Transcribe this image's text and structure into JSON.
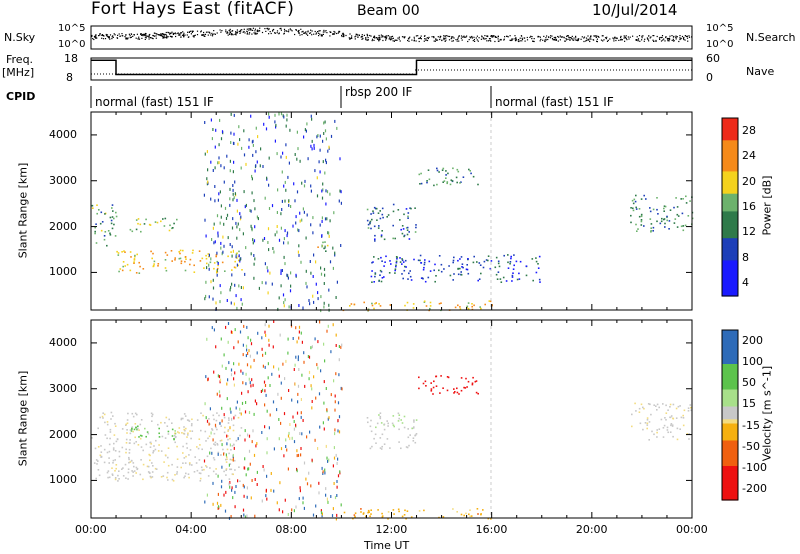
{
  "header": {
    "station": "Fort Hays East (fitACF)",
    "beam": "Beam 00",
    "date": "10/Jul/2014"
  },
  "strip_labels": {
    "nsky": "N.Sky",
    "nsky_top": "10^5",
    "nsky_bottom": "10^0",
    "nsearch": "N.Search",
    "nsearch_top": "10^5",
    "nsearch_bottom": "10^0",
    "freq": "Freq.",
    "freq_unit": "[MHz]",
    "freq_top": "18",
    "freq_bottom": "8",
    "nave": "Nave",
    "nave_top": "60",
    "nave_bottom": "0",
    "cpid": "CPID"
  },
  "cpid_segments": [
    {
      "label": "normal (fast) 151 IF",
      "start_hour": 0
    },
    {
      "label": "rbsp 200 IF",
      "start_hour": 10
    },
    {
      "label": "normal (fast) 151 IF",
      "start_hour": 16
    }
  ],
  "x_axis": {
    "title": "Time UT",
    "ticks": [
      "00:00",
      "04:00",
      "08:00",
      "12:00",
      "16:00",
      "20:00",
      "00:00"
    ]
  },
  "panels": {
    "power": {
      "ylabel": "Slant Range [km]",
      "yticks": [
        "4000",
        "3000",
        "2000",
        "1000"
      ],
      "colorbar_label": "Power [dB]",
      "colorbar_ticks": [
        "28",
        "24",
        "20",
        "16",
        "12",
        "8",
        "4"
      ]
    },
    "velocity": {
      "ylabel": "Slant Range [km]",
      "yticks": [
        "4000",
        "3000",
        "2000",
        "1000"
      ],
      "colorbar_label": "Velocity [m s^-1]",
      "colorbar_ticks": [
        "200",
        "100",
        "50",
        "15",
        "-15",
        "-50",
        "-100",
        "-200"
      ]
    }
  },
  "chart_data": [
    {
      "type": "line",
      "name": "N.Sky / N.Search",
      "y_scale": "log",
      "ylim": [
        1,
        100000
      ]
    },
    {
      "type": "line",
      "name": "Frequency / Nave",
      "xlim": [
        0,
        24
      ],
      "ylim": [
        8,
        18
      ],
      "series": [
        {
          "name": "Freq.",
          "x": [
            0,
            1,
            1,
            13,
            13,
            24
          ],
          "values": [
            17,
            17,
            10.5,
            10.5,
            17,
            17
          ]
        }
      ]
    },
    {
      "type": "heatmap",
      "name": "Power",
      "xlim": [
        0,
        24
      ],
      "ylim": [
        180,
        4500
      ],
      "colorbar": {
        "min": 0,
        "max": 30,
        "ticks": [
          4,
          8,
          12,
          16,
          20,
          24,
          28
        ]
      },
      "features": [
        {
          "t": [
            0,
            1
          ],
          "range": [
            1600,
            2500
          ],
          "power": 14
        },
        {
          "t": [
            1,
            6
          ],
          "range": [
            1000,
            1500
          ],
          "power": 20
        },
        {
          "t": [
            1.5,
            3.5
          ],
          "range": [
            1900,
            2200
          ],
          "power": 16
        },
        {
          "t": [
            8.9,
            9.5
          ],
          "range": [
            1400,
            1700
          ],
          "power": 18
        },
        {
          "t": [
            11,
            13
          ],
          "range": [
            1700,
            2500
          ],
          "power": 10
        },
        {
          "t": [
            13,
            15.5
          ],
          "range": [
            2900,
            3300
          ],
          "power": 12
        },
        {
          "t": [
            11,
            18
          ],
          "range": [
            800,
            1400
          ],
          "power": 8
        },
        {
          "t": [
            10,
            16
          ],
          "range": [
            180,
            400
          ],
          "power": 20
        },
        {
          "t": [
            21.5,
            24
          ],
          "range": [
            1900,
            2700
          ],
          "power": 12
        }
      ]
    },
    {
      "type": "heatmap",
      "name": "Velocity",
      "xlim": [
        0,
        24
      ],
      "ylim": [
        180,
        4500
      ],
      "colorbar": {
        "min": -250,
        "max": 250,
        "ticks": [
          200,
          100,
          50,
          15,
          -15,
          -50,
          -100,
          -200
        ]
      },
      "features": [
        {
          "t": [
            13,
            15.5
          ],
          "range": [
            2900,
            3300
          ],
          "velocity": -220
        },
        {
          "t": [
            1.5,
            3.5
          ],
          "range": [
            1900,
            2200
          ],
          "velocity": 100
        },
        {
          "t": [
            0,
            6
          ],
          "range": [
            1000,
            2500
          ],
          "velocity": 0
        },
        {
          "t": [
            11,
            13
          ],
          "range": [
            1700,
            2500
          ],
          "velocity": 20
        },
        {
          "t": [
            10,
            16
          ],
          "range": [
            180,
            400
          ],
          "velocity": -50
        },
        {
          "t": [
            21.5,
            24
          ],
          "range": [
            1900,
            2700
          ],
          "velocity": 0
        }
      ]
    }
  ]
}
